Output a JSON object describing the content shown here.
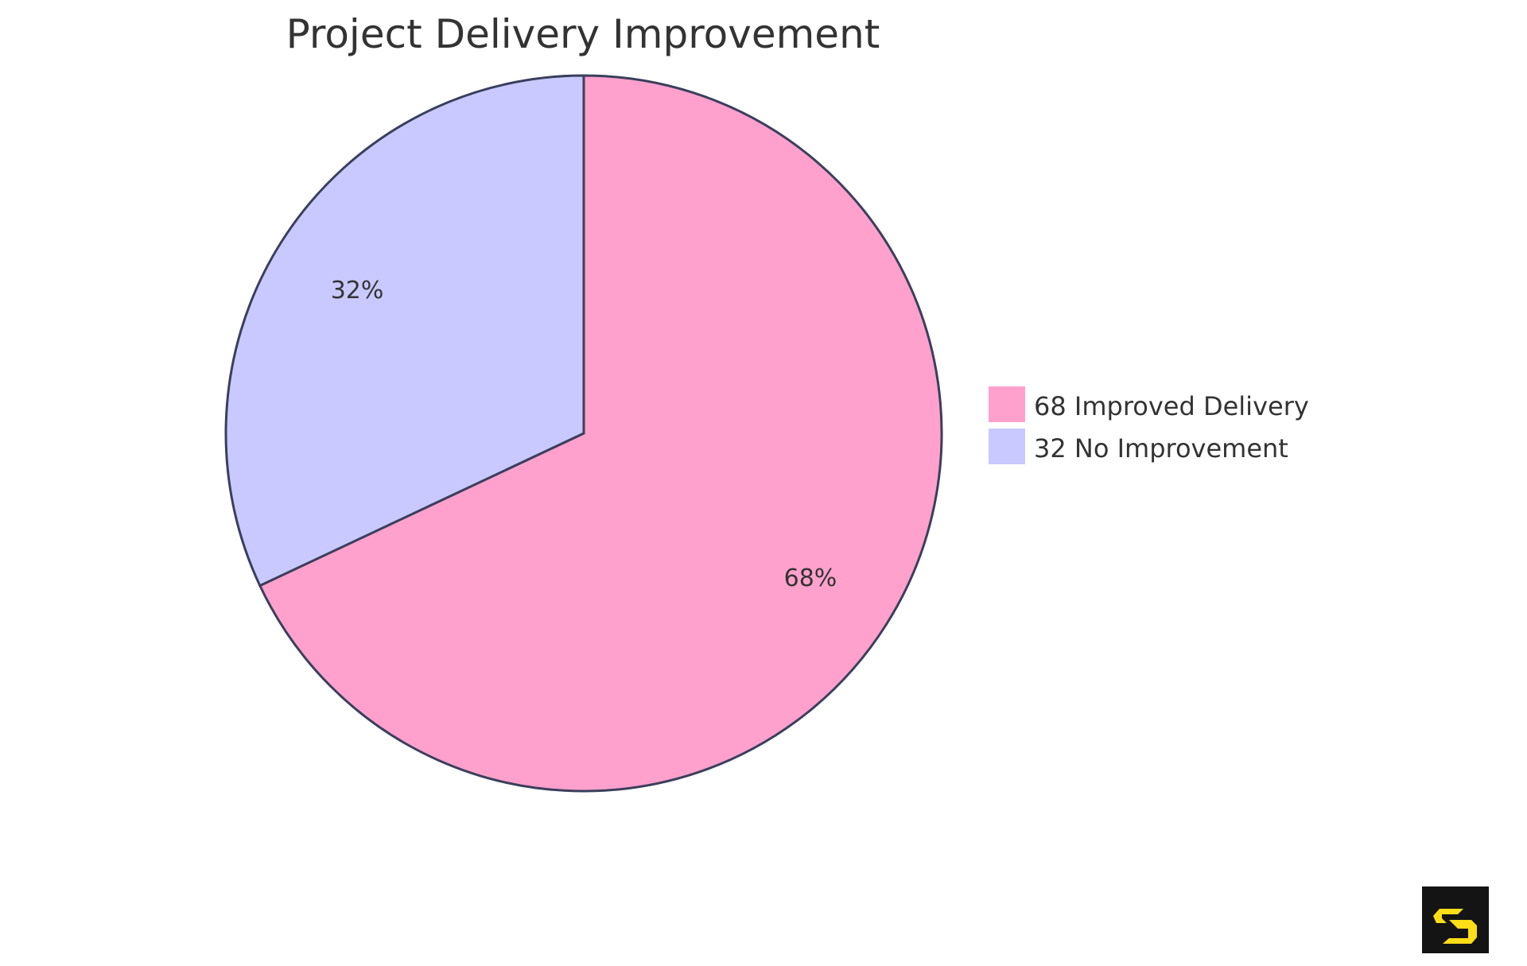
{
  "chart_data": {
    "type": "pie",
    "title": "Project Delivery Improvement",
    "slices": [
      {
        "label": "Improved Delivery",
        "value": 68,
        "percent_label": "68%",
        "legend": "68 Improved Delivery",
        "color": "#FFA1CC"
      },
      {
        "label": "No Improvement",
        "value": 32,
        "percent_label": "32%",
        "legend": "32 No Improvement",
        "color": "#C9C9FF"
      }
    ],
    "start_angle": "12 o'clock, clockwise",
    "stroke_color": "#3A3F5C",
    "legend_position": "right"
  },
  "logo": {
    "name": "s-logo",
    "bg": "#141414",
    "fg": "#FFDD17"
  }
}
